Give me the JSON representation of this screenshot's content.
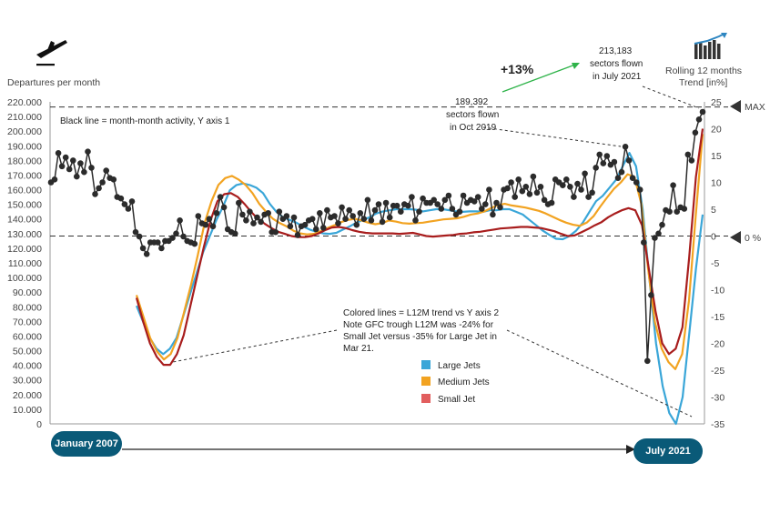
{
  "chart_data": {
    "type": "line",
    "title": "Departures per month",
    "left_axis_label": "Departures per month",
    "right_axis_label_line1": "Rolling 12 months",
    "right_axis_label_line2": "Trend [in%]",
    "ylim": [
      0,
      220000
    ],
    "y2lim": [
      -35,
      25
    ],
    "left_ticks": [
      "220.000",
      "210.000",
      "200.000",
      "190.000",
      "180.000",
      "170.000",
      "160.000",
      "150.000",
      "140.000",
      "130.000",
      "120.000",
      "110.000",
      "100.000",
      "90.000",
      "80.000",
      "70.000",
      "60.000",
      "50.000",
      "40.000",
      "30.000",
      "20.000",
      "10.000",
      "0"
    ],
    "right_ticks": [
      "25",
      "20",
      "15",
      "10",
      "5",
      "0",
      "-5",
      "-10",
      "-15",
      "-20",
      "-25",
      "-30",
      "-35"
    ],
    "max_label": "MAX",
    "zero_label": "0 %",
    "start_label": "January 2007",
    "end_label": "July 2021",
    "note_black": "Black line = month-month activity, Y axis 1",
    "note_colored": [
      "Colored lines = L12M trend vs Y axis 2",
      "Note GFC trough L12M was -24% for",
      "Small Jet versus -35% for Large Jet in",
      "Mar 21."
    ],
    "annotation_oct2019": [
      "189,392",
      "sectors flown",
      "in Oct 2019"
    ],
    "annotation_jul2021": [
      "213,183",
      "sectors flown",
      "in July 2021"
    ],
    "growth_label": "+13%",
    "max_line_value": 216500,
    "zero_line_value": 0,
    "series": [
      {
        "name": "Departures",
        "axis": "left",
        "color": "#2b2b2b",
        "type": "line_markers",
        "values": [
          165000,
          167000,
          185000,
          176000,
          182000,
          174000,
          180000,
          169000,
          178000,
          172000,
          186000,
          175000,
          157000,
          161000,
          165000,
          173000,
          168000,
          167000,
          155000,
          154000,
          150000,
          147000,
          152000,
          131000,
          128000,
          120000,
          116000,
          124000,
          124000,
          124000,
          120000,
          125000,
          125000,
          127000,
          130000,
          139000,
          128000,
          125000,
          124000,
          123000,
          142000,
          137000,
          136000,
          140000,
          135000,
          144000,
          155000,
          148000,
          133000,
          131000,
          130000,
          151000,
          143000,
          139000,
          145000,
          137000,
          141000,
          138000,
          143000,
          144000,
          131000,
          131000,
          145000,
          140000,
          142000,
          135000,
          141000,
          129000,
          135000,
          136000,
          139000,
          140000,
          133000,
          144000,
          134000,
          146000,
          141000,
          142000,
          137000,
          148000,
          140000,
          146000,
          142000,
          136000,
          144000,
          140000,
          153000,
          139000,
          146000,
          150000,
          138000,
          151000,
          141000,
          149000,
          149000,
          145000,
          150000,
          149000,
          155000,
          139000,
          145000,
          154000,
          151000,
          151000,
          153000,
          150000,
          147000,
          153000,
          156000,
          147000,
          143000,
          145000,
          156000,
          151000,
          153000,
          152000,
          155000,
          147000,
          150000,
          160000,
          143000,
          151000,
          148000,
          160000,
          161000,
          165000,
          155000,
          167000,
          159000,
          162000,
          157000,
          169000,
          158000,
          162000,
          153000,
          150000,
          151000,
          167000,
          165000,
          163000,
          167000,
          162000,
          155000,
          164000,
          160000,
          171000,
          155000,
          158000,
          175000,
          184000,
          178000,
          183000,
          177000,
          179000,
          168000,
          172000,
          189392,
          180000,
          168000,
          165000,
          160000,
          124000,
          43000,
          88000,
          127000,
          130000,
          136000,
          146000,
          145000,
          163000,
          145000,
          148000,
          147000,
          184000,
          180000,
          199000,
          208000,
          213183
        ]
      },
      {
        "name": "Large Jets",
        "axis": "right",
        "color": "#3aa6d8",
        "values": [
          -13,
          -16,
          -19,
          -21,
          -22,
          -21,
          -19,
          -15,
          -11,
          -7,
          -3,
          0,
          3,
          5.5,
          8.5,
          9.5,
          9.8,
          9.5,
          9,
          8,
          6,
          4.5,
          3.5,
          3,
          2.5,
          1.8,
          1.2,
          0.8,
          0.5,
          0.4,
          0.6,
          1.2,
          1.8,
          2.5,
          3,
          3.5,
          4.2,
          4.6,
          4.8,
          5,
          5,
          5,
          4.9,
          4.6,
          4.8,
          5,
          5,
          4.8,
          4.6,
          4.5,
          4.6,
          4.6,
          4.5,
          4.8,
          4.8,
          5,
          5,
          4.5,
          4,
          3,
          2,
          1,
          0.2,
          -0.5,
          -0.6,
          0,
          1,
          2.5,
          4.5,
          6.5,
          7.5,
          9,
          10.5,
          13,
          15.5,
          13,
          5,
          -8,
          -20,
          -28,
          -33,
          -35,
          -30,
          -18,
          -6,
          4
        ]
      },
      {
        "name": "Medium Jets",
        "axis": "right",
        "color": "#f2a321",
        "values": [
          -11,
          -15,
          -19,
          -21.5,
          -23,
          -22,
          -19,
          -14,
          -9,
          -3.5,
          2.5,
          6.5,
          9.5,
          10.8,
          11.2,
          10.5,
          9.5,
          8,
          6,
          4.5,
          3.2,
          2.4,
          1.8,
          1,
          0.5,
          0.3,
          0.4,
          0.9,
          1.5,
          2,
          2.6,
          3,
          3.2,
          2.9,
          2.5,
          2.2,
          2.4,
          2.9,
          2.7,
          2.4,
          2.3,
          2.4,
          2.5,
          2.7,
          2.9,
          3.1,
          3.2,
          3.3,
          3.6,
          4,
          4.2,
          4.6,
          5.2,
          5.8,
          6,
          5.7,
          5.5,
          5.3,
          5,
          4.7,
          4.2,
          3.6,
          3,
          2.5,
          2.1,
          1.9,
          2.5,
          3.7,
          5.5,
          7.2,
          8.8,
          10,
          11.5,
          11,
          6,
          -6,
          -16,
          -21,
          -23.5,
          -24.8,
          -22,
          -12,
          4,
          19
        ]
      },
      {
        "name": "Small Jet",
        "axis": "right",
        "color": "#a81d1d",
        "values": [
          -11.5,
          -16,
          -20,
          -22.5,
          -24,
          -24,
          -22,
          -18.5,
          -13,
          -7.5,
          -2,
          3,
          6.5,
          7.8,
          8,
          7.3,
          6,
          4.5,
          3.2,
          2.3,
          1.5,
          0.8,
          0.4,
          0,
          -0.2,
          -0.2,
          0,
          0.5,
          1.1,
          1.6,
          1.7,
          1.5,
          1.1,
          0.8,
          0.6,
          0.5,
          0.5,
          0.5,
          0.5,
          0.4,
          0.5,
          0.6,
          0.3,
          0,
          -0.1,
          0,
          0.1,
          0.2,
          0.4,
          0.5,
          0.7,
          0.8,
          1,
          1.2,
          1.4,
          1.5,
          1.6,
          1.7,
          1.7,
          1.6,
          1.5,
          1.2,
          0.9,
          0.4,
          0,
          0.1,
          0.7,
          1.3,
          2,
          2.6,
          3.5,
          4.2,
          4.8,
          5.2,
          4.8,
          2,
          -6,
          -14,
          -20,
          -22,
          -21,
          -17,
          -4,
          11,
          20
        ]
      }
    ],
    "legend": [
      {
        "label": "Large Jets",
        "color": "#3aa6d8"
      },
      {
        "label": "Medium Jets",
        "color": "#f2a321"
      },
      {
        "label": "Small Jet",
        "color": "#e25e5e"
      }
    ]
  }
}
